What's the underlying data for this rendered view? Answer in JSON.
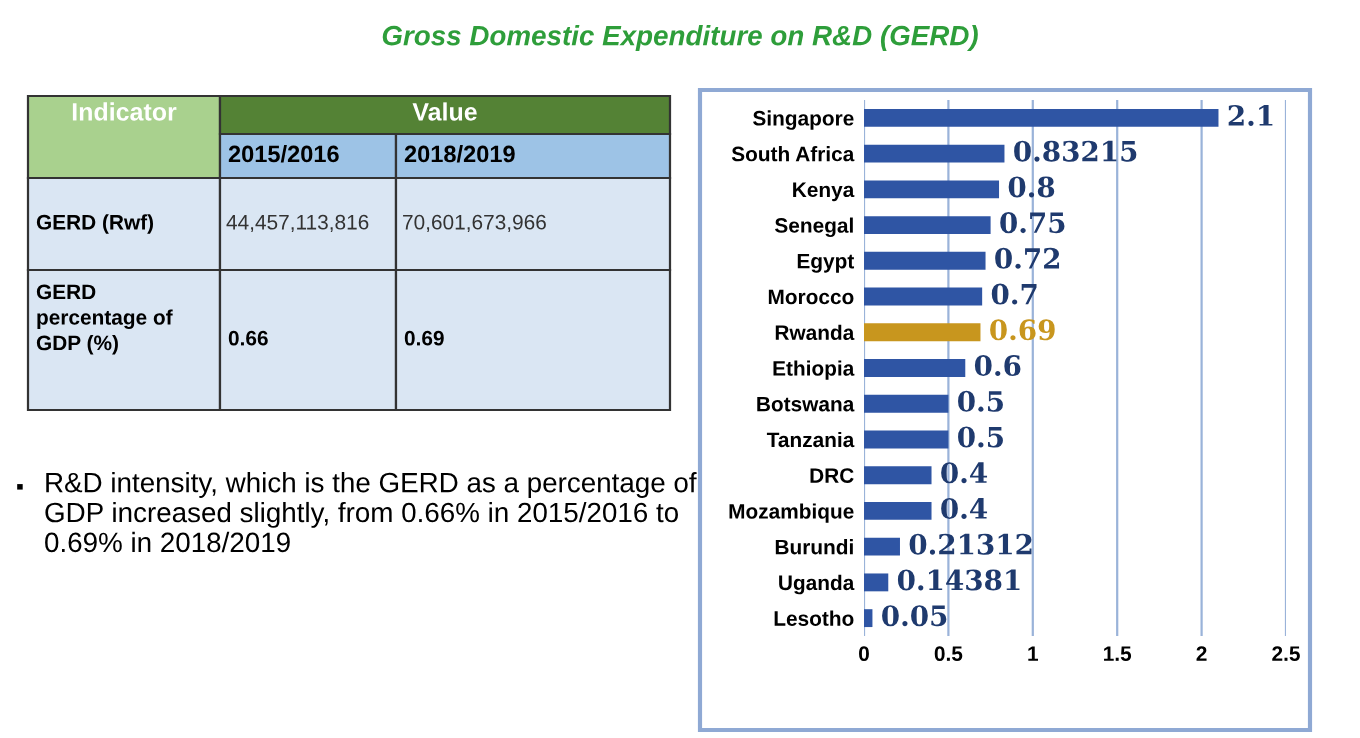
{
  "chart_data": [
    {
      "type": "other",
      "annotations": [
        "Indicator",
        "Value",
        "2015/2016",
        "2018/2019",
        "GERD (Rwf)",
        "44,457,113,816",
        "70,601,673,966",
        "GERD percentage of GDP (%)",
        "0.66",
        "0.69",
        "▪",
        "R&D intensity, which is the GERD as a percentage of GDP increased slightly, from 0.66% in 2015/2016 to 0.69% in 2018/2019"
      ]
    },
    {
      "type": "bar",
      "title": "Gross Domestic Expenditure on R&D (GERD)",
      "orientation": "horizontal",
      "categories": [
        "Singapore",
        "South Africa",
        "Kenya",
        "Senegal",
        "Egypt",
        "Morocco",
        "Rwanda",
        "Ethiopia",
        "Botswana",
        "Tanzania",
        "DRC",
        "Mozambique",
        "Burundi",
        "Uganda",
        "Lesotho"
      ],
      "values": [
        2.1,
        0.83215,
        0.8,
        0.75,
        0.72,
        0.7,
        0.69,
        0.6,
        0.5,
        0.5,
        0.4,
        0.4,
        0.21312,
        0.14381,
        0.05
      ],
      "colors": [
        "#2f55a4",
        "#2f55a4",
        "#2f55a4",
        "#2f55a4",
        "#2f55a4",
        "#2f55a4",
        "#c8961e",
        "#2f55a4",
        "#2f55a4",
        "#2f55a4",
        "#2f55a4",
        "#2f55a4",
        "#2f55a4",
        "#2f55a4",
        "#2f55a4"
      ],
      "xlim": [
        0,
        2.5
      ],
      "xticks": [
        0,
        0.5,
        1,
        1.5,
        2,
        2.5
      ],
      "grid": "x",
      "data_labels": true
    }
  ]
}
